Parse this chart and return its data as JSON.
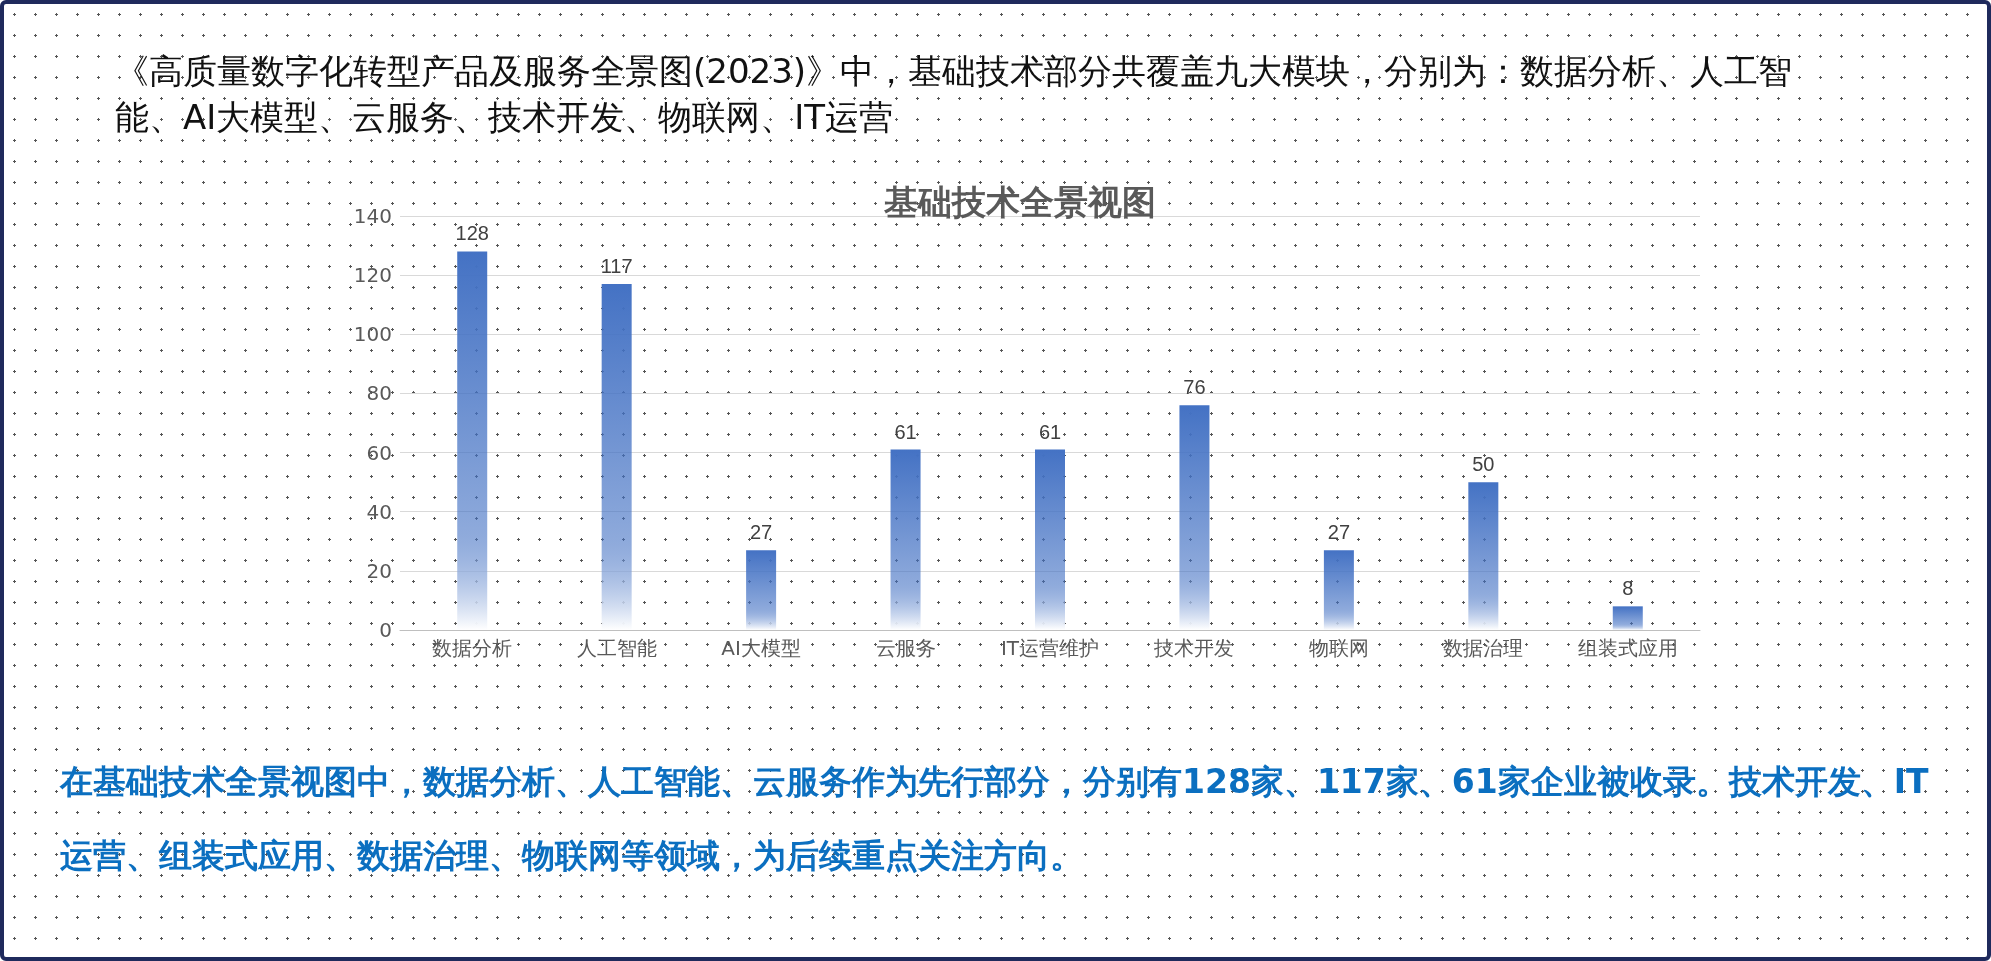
{
  "chart_data": {
    "type": "bar",
    "title": "基础技术全景视图",
    "categories": [
      "数据分析",
      "人工智能",
      "AI大模型",
      "云服务",
      "IT运营维护",
      "技术开发",
      "物联网",
      "数据治理",
      "组装式应用"
    ],
    "values": [
      128,
      117,
      27,
      61,
      61,
      76,
      27,
      50,
      8
    ],
    "color": "#4472c4",
    "ylim": [
      0,
      140
    ],
    "yticks": [
      0,
      20,
      40,
      60,
      80,
      100,
      120,
      140
    ],
    "grid": "y",
    "data_labels": true,
    "annotations": [
      "《高质量数字化转型产品及服务全景图(2023)》中，基础技术部分共覆盖九大模块，分别为：数据分析、人工智能、AI大模型、云服务、技术开发、物联网、IT运营",
      "在基础技术全景视图中，数据分析、人工智能、云服务作为先行部分，分别有128家、117家、61家企业被收录。技术开发、IT运营、组装式应用、数据治理、物联网等领域，为后续重点关注方向。"
    ]
  }
}
